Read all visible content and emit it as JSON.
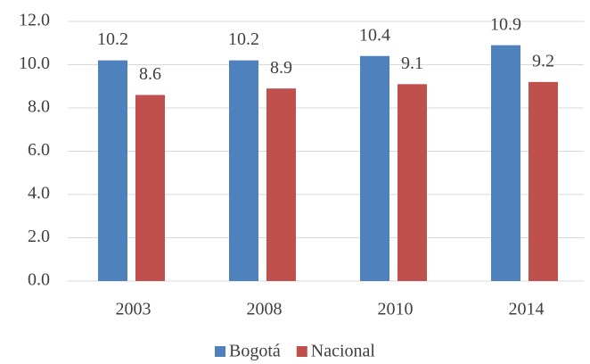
{
  "chart_data": {
    "type": "bar",
    "categories": [
      "2003",
      "2008",
      "2010",
      "2014"
    ],
    "series": [
      {
        "name": "Bogotá",
        "color": "#4f81bd",
        "values": [
          10.2,
          10.2,
          10.4,
          10.9
        ]
      },
      {
        "name": "Nacional",
        "color": "#c0504d",
        "values": [
          8.6,
          8.9,
          9.1,
          9.2
        ]
      }
    ],
    "ylim": [
      0,
      12
    ],
    "yticks": [
      {
        "value": 0,
        "label": "0.0"
      },
      {
        "value": 2,
        "label": "2.0"
      },
      {
        "value": 4,
        "label": "4.0"
      },
      {
        "value": 6,
        "label": "6.0"
      },
      {
        "value": 8,
        "label": "8.0"
      },
      {
        "value": 10,
        "label": "10.0"
      },
      {
        "value": 12,
        "label": "12.0"
      }
    ],
    "grid": true,
    "legend": "bottom"
  }
}
